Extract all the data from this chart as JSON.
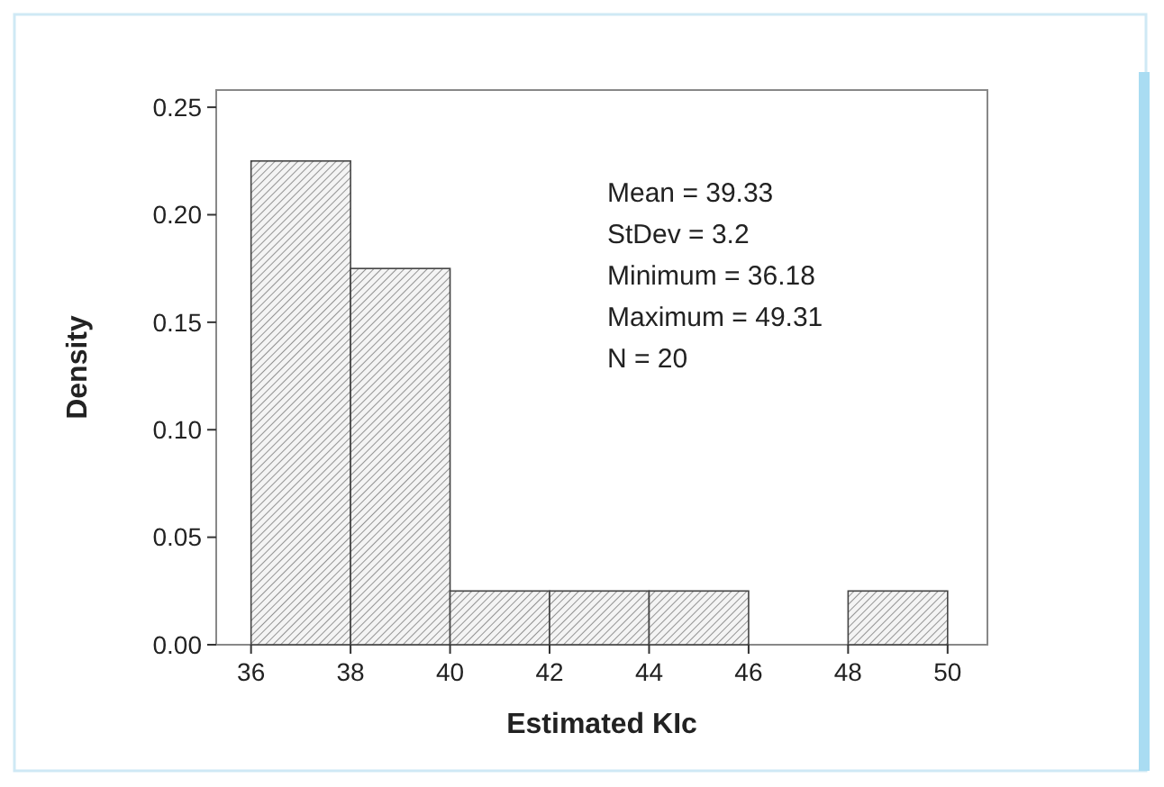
{
  "chart_data": {
    "type": "histogram",
    "xlabel": "Estimated KIc",
    "ylabel": "Density",
    "bins": [
      36,
      38,
      40,
      42,
      44,
      46,
      48,
      50
    ],
    "values": [
      0.225,
      0.175,
      0.025,
      0.025,
      0.025,
      0,
      0.025
    ],
    "color": "#444444",
    "xlim": [
      35.3,
      50.8
    ],
    "xticks": [
      36,
      38,
      40,
      42,
      44,
      46,
      48,
      50
    ],
    "ylim": [
      0,
      0.258
    ],
    "yticks": [
      {
        "value": 0,
        "label": "0.00"
      },
      {
        "value": 0.05,
        "label": "0.05"
      },
      {
        "value": 0.1,
        "label": "0.10"
      },
      {
        "value": 0.15,
        "label": "0.15"
      },
      {
        "value": 0.2,
        "label": "0.20"
      },
      {
        "value": 0.25,
        "label": "0.25"
      }
    ],
    "annotations": [
      "Mean = 39.33",
      "StDev = 3.2",
      "Minimum = 36.18",
      "Maximum = 49.31",
      "N = 20"
    ]
  }
}
